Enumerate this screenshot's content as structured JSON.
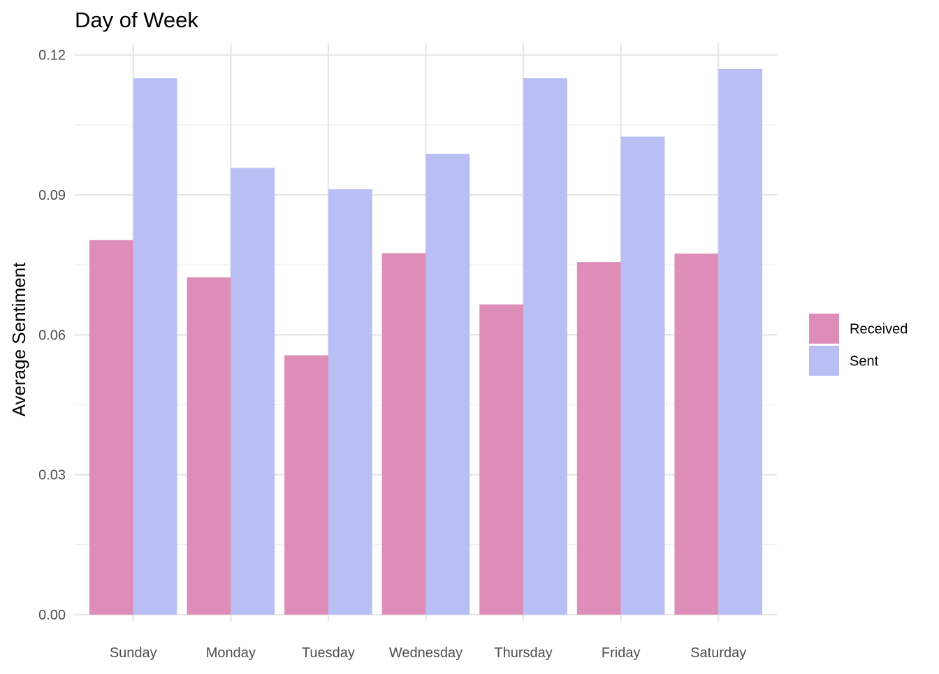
{
  "chart_data": {
    "type": "bar",
    "title": "Day of Week",
    "xlabel": "",
    "ylabel": "Average Sentiment",
    "categories": [
      "Sunday",
      "Monday",
      "Tuesday",
      "Wednesday",
      "Thursday",
      "Friday",
      "Saturday"
    ],
    "series": [
      {
        "name": "Received",
        "color": "#de8cb8",
        "values": [
          0.0803,
          0.0723,
          0.0556,
          0.0775,
          0.0665,
          0.0756,
          0.0774
        ]
      },
      {
        "name": "Sent",
        "color": "#b9bff5",
        "values": [
          0.115,
          0.0958,
          0.0912,
          0.0988,
          0.115,
          0.1025,
          0.117
        ]
      }
    ],
    "ylim": [
      -0.0015,
      0.1225
    ],
    "yticks": [
      0.0,
      0.03,
      0.06,
      0.09,
      0.12
    ],
    "ytick_labels": [
      "0.00",
      "0.03",
      "0.06",
      "0.09",
      "0.12"
    ],
    "y_minor_ticks": [
      0.015,
      0.045,
      0.075,
      0.105
    ],
    "grid": true,
    "legend_position": "right"
  }
}
